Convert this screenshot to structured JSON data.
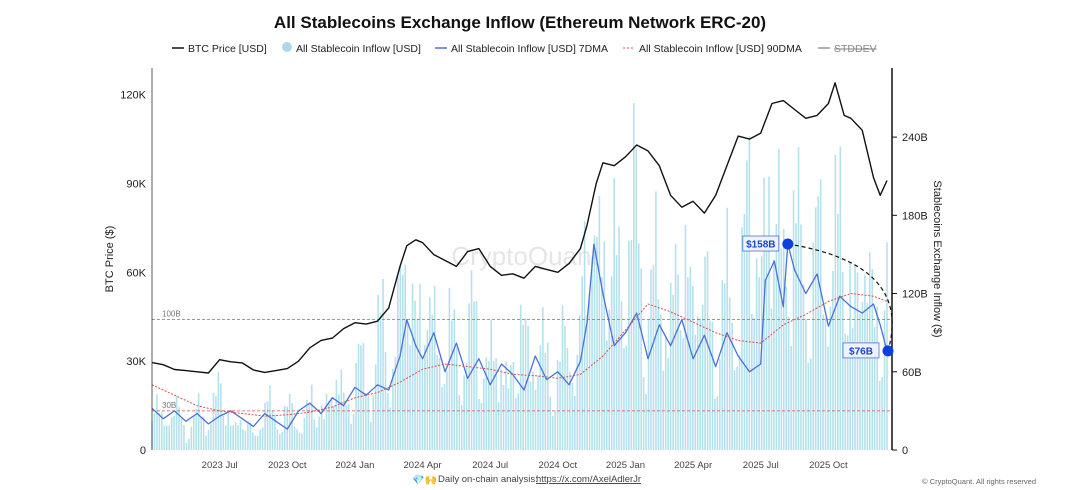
{
  "chart_data": {
    "type": "line",
    "title": "All Stablecoins Exchange Inflow (Ethereum Network ERC-20)",
    "legend": [
      "BTC Price [USD]",
      "All Stablecoin Inflow [USD]",
      "All Stablecoin Inflow [USD] 7DMA",
      "All Stablecoin Inflow [USD] 90DMA",
      "STDDEV"
    ],
    "legend_placement": "top",
    "ylabel_left": "BTC Price ($)",
    "ylabel_right": "Stablecoins Exchange Inflow ($)",
    "yticks_left": [
      "0",
      "30K",
      "60K",
      "90K",
      "120K"
    ],
    "ylim_left": [
      0,
      129000
    ],
    "yticks_right": [
      "0",
      "60B",
      "120B",
      "180B",
      "240B"
    ],
    "ylim_right": [
      0,
      293
    ],
    "xticks": [
      "2023 Jul",
      "2023 Oct",
      "2024 Jan",
      "2024 Apr",
      "2024 Jul",
      "2024 Oct",
      "2025 Jan",
      "2025 Apr",
      "2025 Jul",
      "2025 Oct"
    ],
    "x_unit": "months since 2023-04-01",
    "xtick_months": [
      3,
      6,
      9,
      12,
      15,
      18,
      21,
      24,
      27,
      30
    ],
    "xlim": [
      0,
      32.6
    ],
    "ref_lines": [
      {
        "label": "100B",
        "value": 100
      },
      {
        "label": "30B",
        "value": 30
      }
    ],
    "annotations": [
      {
        "label": "$158B",
        "x": 28.2,
        "value": 158
      },
      {
        "label": "$76B",
        "x": 32.6,
        "value": 76
      }
    ],
    "btc_price": {
      "x": [
        0,
        0.5,
        1,
        1.5,
        2,
        2.5,
        3,
        3.5,
        4,
        4.5,
        5,
        5.5,
        6,
        6.5,
        7,
        7.5,
        8,
        8.5,
        9,
        9.5,
        10,
        10.5,
        11,
        11.3,
        11.7,
        12,
        12.5,
        13,
        13.5,
        14,
        14.5,
        15,
        15.5,
        16,
        16.5,
        17,
        17.5,
        18,
        18.5,
        19,
        19.3,
        19.7,
        20,
        20.5,
        21,
        21.5,
        22,
        22.5,
        23,
        23.5,
        24,
        24.5,
        25,
        25.5,
        26,
        26.5,
        27,
        27.5,
        28,
        28.5,
        29,
        29.5,
        30,
        30.3,
        30.7,
        31,
        31.5,
        32,
        32.3,
        32.6
      ],
      "y": [
        29500,
        28800,
        27200,
        26800,
        26400,
        26000,
        30500,
        29800,
        29400,
        27000,
        26200,
        26800,
        27500,
        30000,
        34500,
        37000,
        37800,
        41000,
        43000,
        42500,
        43500,
        48000,
        62000,
        69000,
        71000,
        70000,
        66000,
        64000,
        62000,
        67000,
        68000,
        62000,
        59000,
        59500,
        58000,
        62000,
        61000,
        60000,
        63000,
        68000,
        76000,
        90000,
        97000,
        96000,
        99000,
        103000,
        101000,
        96000,
        86000,
        82000,
        84000,
        80000,
        86000,
        96000,
        106000,
        105000,
        107000,
        117000,
        118000,
        115000,
        112000,
        113000,
        117000,
        124000,
        113000,
        112000,
        108000,
        92000,
        86000,
        91000
      ]
    },
    "inflow_7dma_B": {
      "x": [
        0,
        0.5,
        1,
        1.5,
        2,
        2.5,
        3,
        3.5,
        4,
        4.5,
        5,
        5.5,
        6,
        6.5,
        7,
        7.5,
        8,
        8.5,
        9,
        9.5,
        10,
        10.5,
        11,
        11.3,
        11.7,
        12,
        12.5,
        13,
        13.5,
        14,
        14.5,
        15,
        15.5,
        16,
        16.5,
        17,
        17.5,
        18,
        18.5,
        19,
        19.3,
        19.6,
        20,
        20.5,
        21,
        21.5,
        22,
        22.5,
        23,
        23.5,
        24,
        24.5,
        25,
        25.5,
        26,
        26.5,
        27,
        27.2,
        27.6,
        28,
        28.2,
        28.5,
        29,
        29.5,
        30,
        30.5,
        31,
        31.5,
        32,
        32.3,
        32.6
      ],
      "y": [
        32,
        24,
        30,
        22,
        28,
        20,
        26,
        30,
        24,
        18,
        28,
        22,
        16,
        30,
        36,
        28,
        40,
        34,
        48,
        42,
        50,
        46,
        72,
        100,
        80,
        70,
        90,
        60,
        82,
        55,
        70,
        50,
        66,
        58,
        46,
        72,
        54,
        60,
        50,
        68,
        98,
        158,
        120,
        80,
        90,
        105,
        70,
        96,
        80,
        100,
        70,
        88,
        64,
        90,
        72,
        60,
        66,
        130,
        145,
        110,
        158,
        138,
        120,
        135,
        95,
        118,
        110,
        105,
        112,
        96,
        76
      ]
    },
    "inflow_90dma_B": {
      "x": [
        0,
        1,
        2,
        3,
        4,
        5,
        6,
        7,
        8,
        9,
        10,
        11,
        12,
        13,
        14,
        15,
        16,
        17,
        18,
        19,
        20,
        21,
        22,
        23,
        24,
        25,
        26,
        27,
        28,
        29,
        30,
        31,
        32,
        32.6
      ],
      "y": [
        50,
        42,
        34,
        30,
        28,
        26,
        27,
        29,
        33,
        40,
        44,
        52,
        62,
        66,
        64,
        62,
        58,
        57,
        55,
        58,
        72,
        92,
        112,
        106,
        98,
        90,
        84,
        82,
        96,
        104,
        114,
        120,
        118,
        114
      ]
    },
    "inflow_daily_B_sample": [
      55,
      18,
      40,
      12,
      35,
      22,
      60,
      15,
      30,
      9,
      45,
      20,
      38,
      14,
      50,
      25,
      70,
      30,
      85,
      40,
      120,
      60,
      180,
      95,
      140,
      70,
      110,
      55,
      130,
      60,
      95,
      45,
      115,
      70,
      90,
      50,
      100,
      60,
      210,
      150,
      190,
      120,
      230,
      90,
      170,
      80,
      200,
      110,
      160,
      70,
      150,
      85,
      240,
      130,
      260,
      140,
      220,
      110,
      190,
      120,
      230,
      100,
      180,
      95,
      150
    ]
  },
  "footer": {
    "analysis_label": "Daily on-chain analysis: ",
    "analysis_link": "https://x.com/AxelAdlerJr",
    "copyright": "© CryptoQuant. All rights reserved",
    "watermark": "CryptoQuant"
  }
}
